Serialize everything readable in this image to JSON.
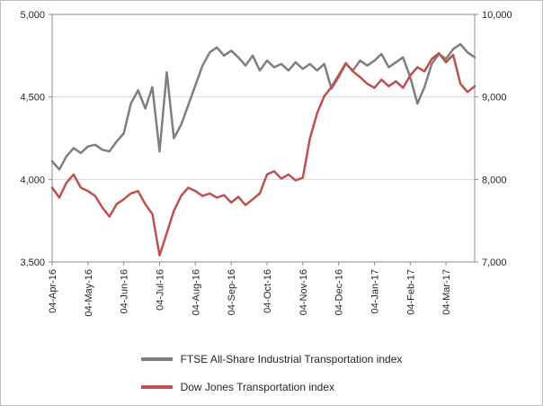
{
  "chart_data": {
    "type": "line",
    "title": "",
    "grid": true,
    "legend_position": "bottom",
    "points_per_month": 5,
    "x_tick_labels": [
      "04-Apr-16",
      "04-May-16",
      "04-Jun-16",
      "04-Jul-16",
      "04-Aug-16",
      "04-Sep-16",
      "04-Oct-16",
      "04-Nov-16",
      "04-Dec-16",
      "04-Jan-17",
      "04-Feb-17",
      "04-Mar-17"
    ],
    "left_axis": {
      "min": 3500,
      "max": 5000,
      "tick_values": [
        3500,
        4000,
        4500,
        5000
      ],
      "tick_labels": [
        "3,500",
        "4,000",
        "4,500",
        "5,000"
      ]
    },
    "right_axis": {
      "min": 7000,
      "max": 10000,
      "tick_values": [
        7000,
        8000,
        9000,
        10000
      ],
      "tick_labels": [
        "7,000",
        "8,000",
        "9,000",
        "10,000"
      ]
    },
    "style": {
      "gridline_color": "#D9D9D9",
      "axis_color": "#8C8C8C",
      "tick_text_color": "#262626"
    },
    "series": [
      {
        "name": "FTSE All-Share Industrial Transportation index",
        "axis": "left",
        "color": "#7F7F7F",
        "values": [
          4110,
          4060,
          4140,
          4190,
          4160,
          4200,
          4210,
          4180,
          4170,
          4230,
          4280,
          4460,
          4540,
          4430,
          4560,
          4170,
          4650,
          4250,
          4330,
          4450,
          4570,
          4690,
          4770,
          4800,
          4750,
          4780,
          4740,
          4690,
          4750,
          4660,
          4720,
          4680,
          4700,
          4660,
          4710,
          4670,
          4700,
          4660,
          4700,
          4550,
          4620,
          4700,
          4660,
          4720,
          4690,
          4720,
          4760,
          4680,
          4710,
          4740,
          4620,
          4460,
          4560,
          4700,
          4760,
          4730,
          4790,
          4820,
          4770,
          4740
        ]
      },
      {
        "name": "Dow Jones Transportation index",
        "axis": "right",
        "color": "#C0504D",
        "values": [
          7900,
          7780,
          7960,
          8060,
          7900,
          7860,
          7800,
          7660,
          7550,
          7700,
          7760,
          7830,
          7860,
          7700,
          7580,
          7080,
          7350,
          7620,
          7800,
          7900,
          7860,
          7800,
          7830,
          7780,
          7810,
          7720,
          7790,
          7690,
          7760,
          7830,
          8060,
          8100,
          8010,
          8060,
          7990,
          8020,
          8500,
          8800,
          9010,
          9120,
          9260,
          9410,
          9310,
          9240,
          9160,
          9110,
          9210,
          9130,
          9190,
          9110,
          9260,
          9360,
          9310,
          9460,
          9530,
          9420,
          9510,
          9160,
          9060,
          9130
        ]
      }
    ]
  }
}
